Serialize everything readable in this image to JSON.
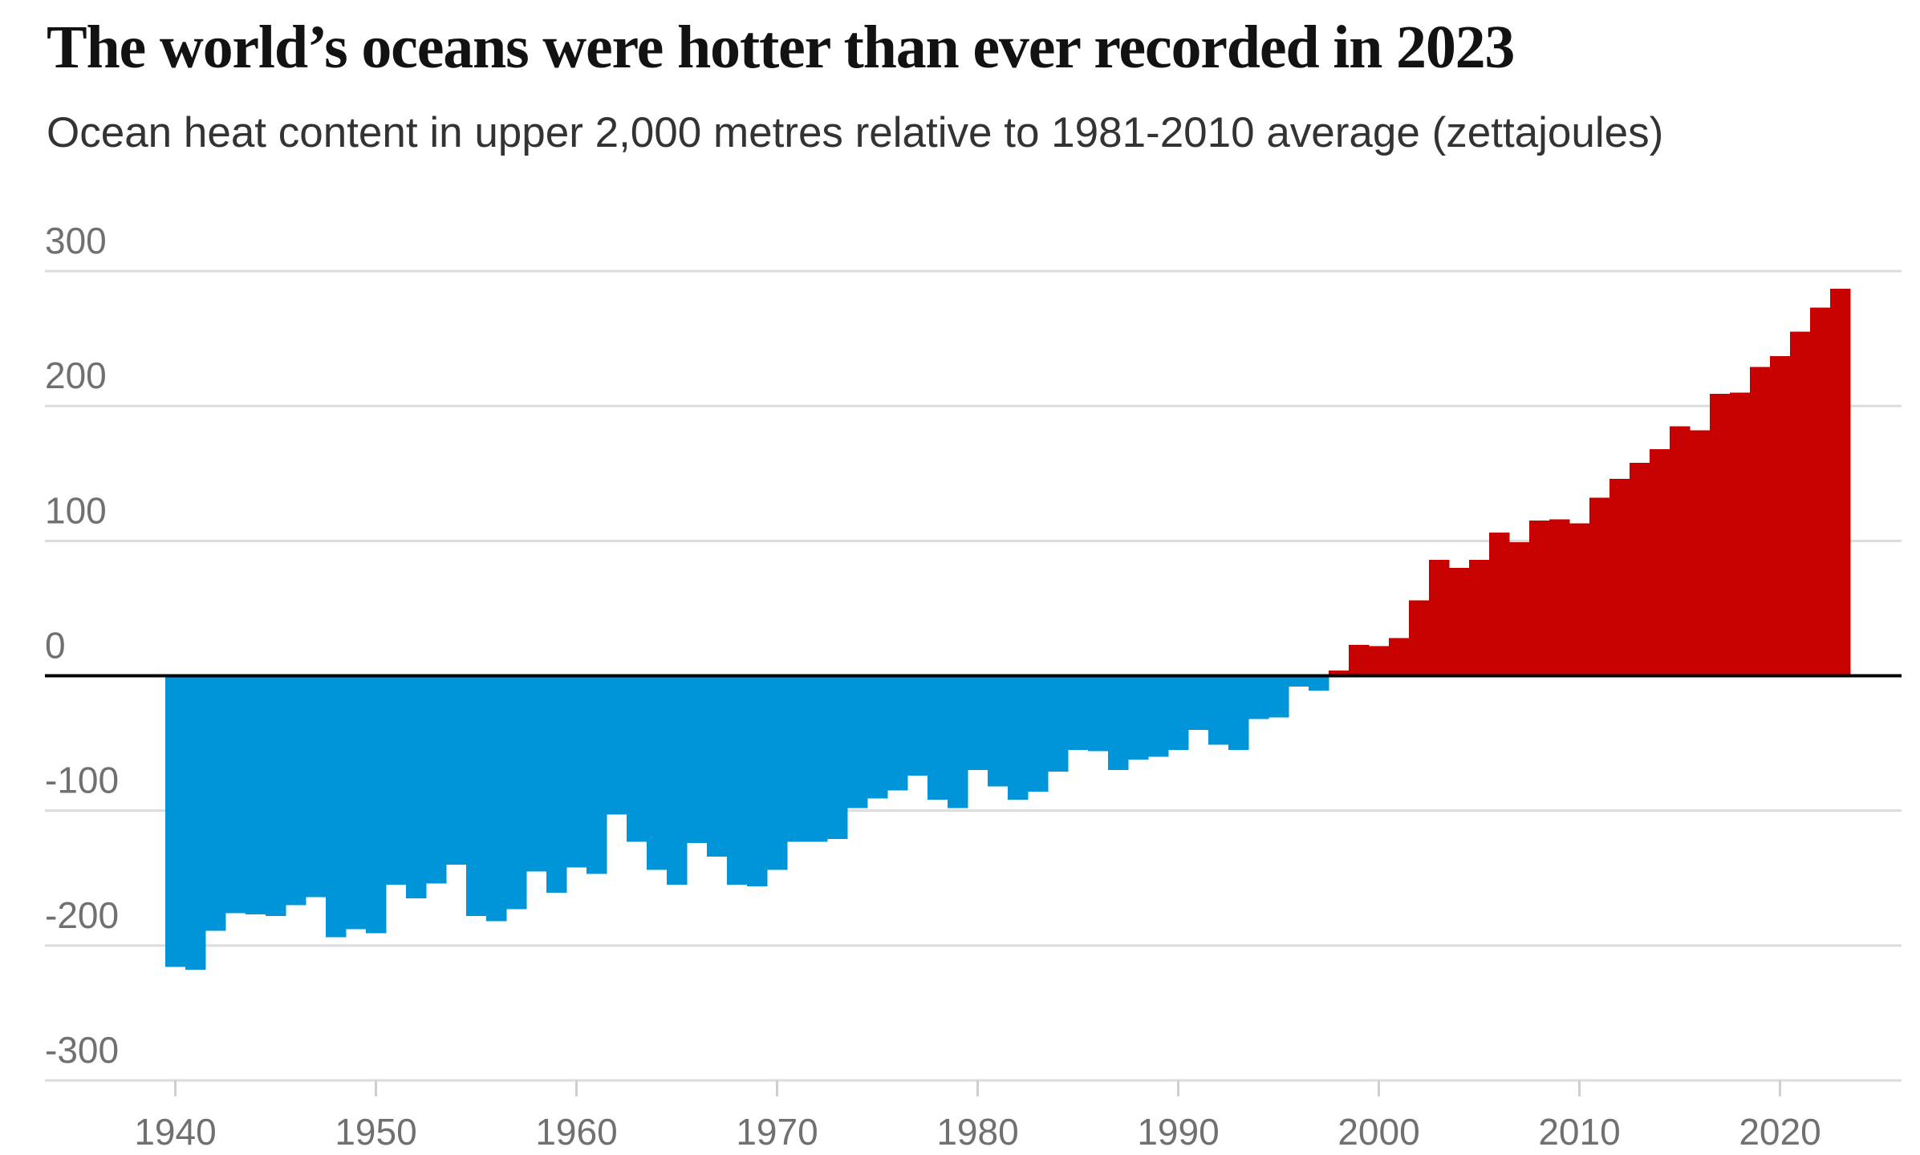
{
  "header": {
    "title": "The world’s oceans were hotter than ever recorded in 2023",
    "subtitle": "Ocean heat content in upper 2,000 metres relative to 1981-2010 average (zettajoules)"
  },
  "colors": {
    "negative": "#0094d8",
    "positive": "#c70000",
    "zero_line": "#000000",
    "grid": "#dcdcdc",
    "axis_text": "#707070"
  },
  "chart_data": {
    "type": "bar",
    "title": "The world’s oceans were hotter than ever recorded in 2023",
    "subtitle": "Ocean heat content in upper 2,000 metres relative to 1981-2010 average (zettajoules)",
    "xlabel": "",
    "ylabel": "",
    "ylim": [
      -300,
      300
    ],
    "xlim": [
      1934,
      2026
    ],
    "grid": true,
    "legend": "none",
    "yticks": [
      300,
      200,
      100,
      0,
      -100,
      -200,
      -300
    ],
    "ytick_labels": [
      "300",
      "200",
      "100",
      "0",
      "-100",
      "-200",
      "-300"
    ],
    "xticks": [
      1940,
      1950,
      1960,
      1970,
      1980,
      1990,
      2000,
      2010,
      2020
    ],
    "xtick_labels": [
      "1940",
      "1950",
      "1960",
      "1970",
      "1980",
      "1990",
      "2000",
      "2010",
      "2020"
    ],
    "color_rule": "negative values blue, positive values red",
    "x": [
      1940,
      1941,
      1942,
      1943,
      1944,
      1945,
      1946,
      1947,
      1948,
      1949,
      1950,
      1951,
      1952,
      1953,
      1954,
      1955,
      1956,
      1957,
      1958,
      1959,
      1960,
      1961,
      1962,
      1963,
      1964,
      1965,
      1966,
      1967,
      1968,
      1969,
      1970,
      1971,
      1972,
      1973,
      1974,
      1975,
      1976,
      1977,
      1978,
      1979,
      1980,
      1981,
      1982,
      1983,
      1984,
      1985,
      1986,
      1987,
      1988,
      1989,
      1990,
      1991,
      1992,
      1993,
      1994,
      1995,
      1996,
      1997,
      1998,
      1999,
      2000,
      2001,
      2002,
      2003,
      2004,
      2005,
      2006,
      2007,
      2008,
      2009,
      2010,
      2011,
      2012,
      2013,
      2014,
      2015,
      2016,
      2017,
      2018,
      2019,
      2020,
      2021,
      2022,
      2023
    ],
    "values": [
      -216,
      -218,
      -189,
      -176,
      -177,
      -178,
      -170,
      -164,
      -194,
      -188,
      -191,
      -155,
      -165,
      -154,
      -140,
      -178,
      -182,
      -173,
      -145,
      -161,
      -142,
      -147,
      -103,
      -123,
      -144,
      -155,
      -124,
      -134,
      -155,
      -156,
      -144,
      -123,
      -123,
      -121,
      -98,
      -91,
      -85,
      -74,
      -92,
      -98,
      -70,
      -82,
      -92,
      -86,
      -71,
      -55,
      -56,
      -70,
      -62,
      -60,
      -55,
      -40,
      -51,
      -55,
      -32,
      -31,
      -8,
      -11,
      4,
      23,
      22,
      28,
      56,
      86,
      80,
      86,
      106,
      99,
      115,
      116,
      113,
      132,
      146,
      158,
      168,
      185,
      182,
      209,
      210,
      229,
      237,
      255,
      273,
      287
    ]
  }
}
